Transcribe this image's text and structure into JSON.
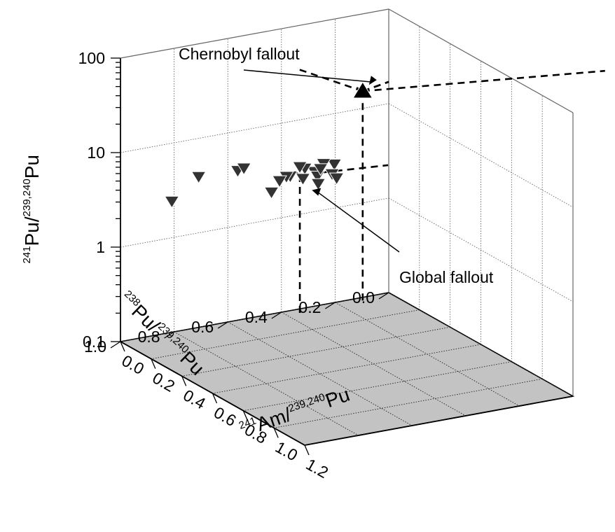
{
  "chart_data": {
    "type": "scatter",
    "projection": "3d",
    "axes": {
      "x": {
        "label_mass": "241",
        "label_main": "Am/",
        "label_sup": "239,240",
        "label_tail": "Pu",
        "ticks": [
          "0.0",
          "0.2",
          "0.4",
          "0.6",
          "0.8",
          "1.0",
          "1.2"
        ],
        "range": [
          0.0,
          1.2
        ]
      },
      "y": {
        "label_mass": "238",
        "label_main": "Pu/",
        "label_sup": "239,240",
        "label_tail": "Pu",
        "ticks": [
          "0.0",
          "0.2",
          "0.4",
          "0.6",
          "0.8",
          "1.0"
        ],
        "range": [
          0.0,
          1.0
        ]
      },
      "z": {
        "label_mass": "241",
        "label_main": "Pu/",
        "label_sup": "239,240",
        "label_tail": "Pu",
        "scale": "log",
        "ticks": [
          "0.1",
          "1",
          "10",
          "100"
        ],
        "range": [
          0.1,
          100
        ]
      }
    },
    "grid": true,
    "floor_color": "#c3c3c3",
    "series": [
      {
        "marker": "triangle-up",
        "color": "#000000",
        "points": [
          {
            "x": 0.04,
            "y": 0.12,
            "z": 17
          }
        ]
      },
      {
        "marker": "triangle-down",
        "color": "#333333",
        "points": [
          {
            "x": 0.03,
            "y": 0.22,
            "z": 3.2
          },
          {
            "x": 0.03,
            "y": 0.26,
            "z": 3.4
          },
          {
            "x": 0.04,
            "y": 0.3,
            "z": 3.0
          },
          {
            "x": 0.03,
            "y": 0.33,
            "z": 3.3
          },
          {
            "x": 0.05,
            "y": 0.36,
            "z": 3.7
          },
          {
            "x": 0.04,
            "y": 0.39,
            "z": 3.0
          },
          {
            "x": 0.05,
            "y": 0.41,
            "z": 3.1
          },
          {
            "x": 0.05,
            "y": 0.24,
            "z": 2.7
          },
          {
            "x": 0.06,
            "y": 0.3,
            "z": 2.8
          },
          {
            "x": 0.07,
            "y": 0.36,
            "z": 2.9
          },
          {
            "x": 0.04,
            "y": 0.43,
            "z": 2.8
          },
          {
            "x": 0.08,
            "y": 0.3,
            "z": 3.5
          },
          {
            "x": 0.08,
            "y": 0.24,
            "z": 2.6
          },
          {
            "x": 0.04,
            "y": 0.46,
            "z": 2.2
          },
          {
            "x": 0.1,
            "y": 0.32,
            "z": 2.6
          },
          {
            "x": 0.03,
            "y": 0.58,
            "z": 4.2
          },
          {
            "x": 0.0,
            "y": 0.54,
            "z": 4.0
          },
          {
            "x": 0.02,
            "y": 0.72,
            "z": 4.2
          },
          {
            "x": 0.02,
            "y": 0.82,
            "z": 2.6
          }
        ]
      }
    ],
    "guides": [
      {
        "x": 0.04,
        "y": 0.12,
        "z": 17
      },
      {
        "x": 0.05,
        "y": 0.36,
        "z": 3.0
      }
    ],
    "annotations": [
      {
        "text": "Chernobyl fallout",
        "target": {
          "x": 0.04,
          "y": 0.12,
          "z": 17
        }
      },
      {
        "text": "Global fallout",
        "target": {
          "x": 0.06,
          "y": 0.36,
          "z": 2.6
        }
      }
    ]
  }
}
